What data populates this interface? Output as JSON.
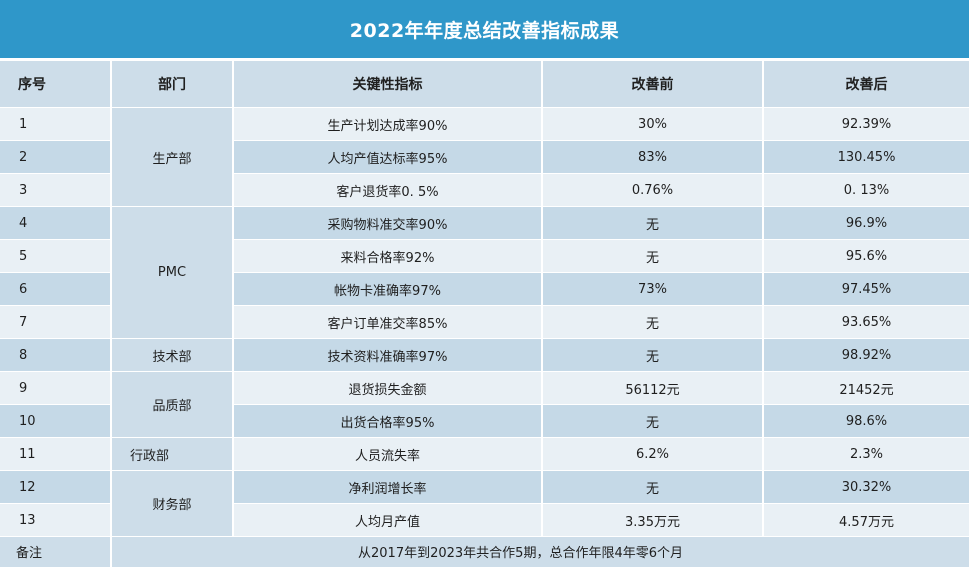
{
  "title": "2022年年度总结改善指标成果",
  "headers": {
    "no": "序号",
    "dept": "部门",
    "kpi": "关键性指标",
    "before": "改善前",
    "after": "改善后"
  },
  "rows": [
    {
      "no": "1",
      "dept": "生产部",
      "kpi": "生产计划达成率90%",
      "before": "30%",
      "after": "92.39%"
    },
    {
      "no": "2",
      "dept": "生产部",
      "kpi": "人均产值达标率95%",
      "before": "83%",
      "after": "130.45%"
    },
    {
      "no": "3",
      "dept": "生产部",
      "kpi": "客户退货率0. 5%",
      "before": "0.76%",
      "after": "0. 13%"
    },
    {
      "no": "4",
      "dept": "PMC",
      "kpi": "采购物料准交率90%",
      "before": "无",
      "after": "96.9%"
    },
    {
      "no": "5",
      "dept": "PMC",
      "kpi": "来料合格率92%",
      "before": "无",
      "after": "95.6%"
    },
    {
      "no": "6",
      "dept": "PMC",
      "kpi": "帐物卡准确率97%",
      "before": "73%",
      "after": "97.45%"
    },
    {
      "no": "7",
      "dept": "PMC",
      "kpi": "客户订单准交率85%",
      "before": "无",
      "after": "93.65%"
    },
    {
      "no": "8",
      "dept": "技术部",
      "kpi": "技术资料准确率97%",
      "before": "无",
      "after": "98.92%"
    },
    {
      "no": "9",
      "dept": "品质部",
      "kpi": "退货损失金额",
      "before": "56112元",
      "after": "21452元"
    },
    {
      "no": "10",
      "dept": "品质部",
      "kpi": "出货合格率95%",
      "before": "无",
      "after": "98.6%"
    },
    {
      "no": "11",
      "dept": "行政部",
      "kpi": "人员流失率",
      "before": "6.2%",
      "after": "2.3%"
    },
    {
      "no": "12",
      "dept": "财务部",
      "kpi": "净利润增长率",
      "before": "无",
      "after": "30.32%"
    },
    {
      "no": "13",
      "dept": "财务部",
      "kpi": "人均月产值",
      "before": "3.35万元",
      "after": "4.57万元"
    }
  ],
  "note": {
    "label": "备注",
    "text": "从2017年到2023年共合作5期，总合作年限4年零6个月"
  }
}
